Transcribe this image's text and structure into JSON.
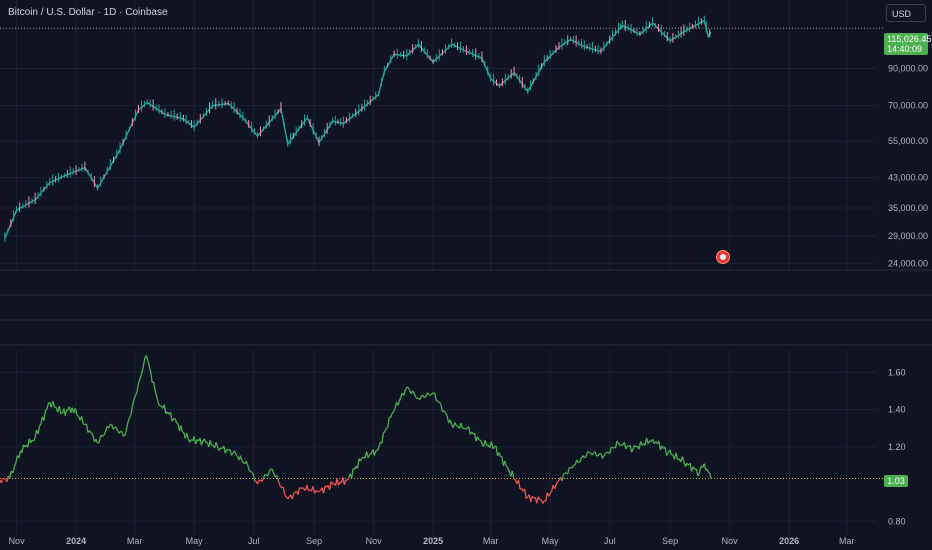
{
  "header": {
    "symbol_title": "Bitcoin / U.S. Dollar · 1D · Coinbase",
    "currency": "USD"
  },
  "price_panel": {
    "last_price": "115,026.45",
    "countdown": "14:40:09",
    "y_ticks": [
      "90,000.00",
      "70,000.00",
      "55,000.00",
      "43,000.00",
      "35,000.00",
      "29,000.00",
      "24,000.00"
    ]
  },
  "indicator_panel": {
    "last_value": "1.03",
    "y_ticks": [
      "1.60",
      "1.40",
      "1.20",
      "0.80"
    ]
  },
  "x_axis": {
    "ticks": [
      "Nov",
      "2024",
      "Mar",
      "May",
      "Jul",
      "Sep",
      "Nov",
      "2025",
      "Mar",
      "May",
      "Jul",
      "Sep",
      "Nov",
      "2026",
      "Mar"
    ]
  },
  "colors": {
    "background": "#0f1322",
    "up": "#4caf50",
    "down": "#ef5350",
    "candle_up": "#26a69a",
    "candle_down": "#f48fb1",
    "price_line": "#9e9e9e"
  },
  "chart_data": [
    {
      "type": "line",
      "scale": "log",
      "ylim": [
        23000,
        125000
      ],
      "x_start": "2023-10-15",
      "x_end": "2026-03-31",
      "series": [
        {
          "x": [
            "2023-10-20",
            "2023-11-01",
            "2023-11-20",
            "2023-12-05",
            "2023-12-20",
            "2024-01-10",
            "2024-01-23",
            "2024-02-15",
            "2024-03-05",
            "2024-03-14",
            "2024-04-01",
            "2024-04-20",
            "2024-05-01",
            "2024-05-20",
            "2024-06-05",
            "2024-06-20",
            "2024-07-05",
            "2024-07-29",
            "2024-08-05",
            "2024-08-25",
            "2024-09-06",
            "2024-09-20",
            "2024-10-01",
            "2024-10-20",
            "2024-11-06",
            "2024-11-12",
            "2024-11-22",
            "2024-12-05",
            "2024-12-17",
            "2025-01-01",
            "2025-01-20",
            "2025-02-01",
            "2025-02-20",
            "2025-03-01",
            "2025-03-10",
            "2025-03-25",
            "2025-04-08",
            "2025-04-25",
            "2025-05-10",
            "2025-05-22",
            "2025-06-05",
            "2025-06-22",
            "2025-07-10",
            "2025-07-14",
            "2025-08-01",
            "2025-08-14",
            "2025-09-01",
            "2025-09-15",
            "2025-10-06",
            "2025-10-10",
            "2025-10-13"
          ],
          "values": [
            28500,
            34500,
            37000,
            41500,
            43500,
            46000,
            40000,
            52000,
            68000,
            71500,
            66000,
            64000,
            60500,
            70000,
            71000,
            64500,
            57000,
            68500,
            54000,
            64500,
            54500,
            63000,
            62000,
            68500,
            75500,
            88000,
            99000,
            98000,
            106000,
            94000,
            106000,
            102000,
            96500,
            84000,
            80000,
            87500,
            77000,
            94000,
            104000,
            109500,
            104500,
            101000,
            117000,
            120500,
            113500,
            122500,
            108500,
            115500,
            124500,
            112000,
            115026
          ]
        }
      ]
    },
    {
      "type": "line",
      "ylim": [
        0.78,
        1.72
      ],
      "reference_line": 1.03,
      "series": [
        {
          "x": [
            "2023-10-15",
            "2023-10-25",
            "2023-11-05",
            "2023-11-20",
            "2023-12-05",
            "2023-12-18",
            "2023-12-28",
            "2024-01-10",
            "2024-01-23",
            "2024-02-05",
            "2024-02-20",
            "2024-03-05",
            "2024-03-13",
            "2024-03-25",
            "2024-04-10",
            "2024-04-25",
            "2024-05-10",
            "2024-05-25",
            "2024-06-10",
            "2024-06-25",
            "2024-07-05",
            "2024-07-20",
            "2024-08-05",
            "2024-08-20",
            "2024-09-06",
            "2024-09-20",
            "2024-10-05",
            "2024-10-20",
            "2024-11-05",
            "2024-11-20",
            "2024-12-05",
            "2024-12-17",
            "2025-01-01",
            "2025-01-20",
            "2025-02-05",
            "2025-02-20",
            "2025-03-05",
            "2025-03-20",
            "2025-04-08",
            "2025-04-25",
            "2025-05-10",
            "2025-05-25",
            "2025-06-10",
            "2025-06-25",
            "2025-07-10",
            "2025-07-25",
            "2025-08-14",
            "2025-08-30",
            "2025-09-15",
            "2025-10-01",
            "2025-10-06",
            "2025-10-13"
          ],
          "values": [
            1.02,
            1.03,
            1.18,
            1.25,
            1.44,
            1.38,
            1.41,
            1.32,
            1.22,
            1.32,
            1.26,
            1.54,
            1.69,
            1.44,
            1.35,
            1.24,
            1.23,
            1.2,
            1.17,
            1.1,
            1.0,
            1.08,
            0.92,
            0.98,
            0.96,
            1.0,
            1.02,
            1.14,
            1.18,
            1.38,
            1.52,
            1.46,
            1.49,
            1.32,
            1.3,
            1.22,
            1.2,
            1.07,
            0.93,
            0.91,
            1.02,
            1.1,
            1.17,
            1.15,
            1.22,
            1.19,
            1.24,
            1.17,
            1.12,
            1.06,
            1.11,
            1.03
          ]
        }
      ]
    }
  ]
}
